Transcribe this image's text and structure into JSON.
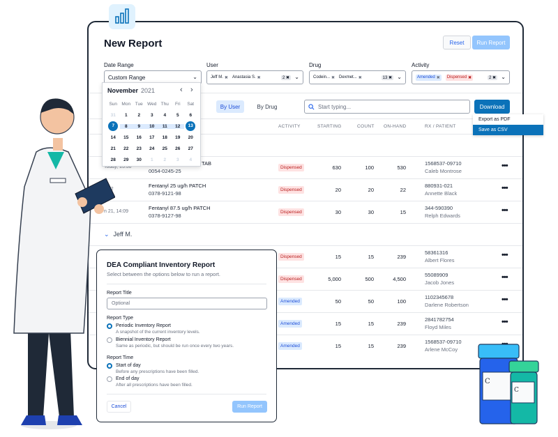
{
  "report": {
    "title": "New Report",
    "reset_label": "Reset",
    "run_label": "Run Report"
  },
  "filters": {
    "date_range": {
      "label": "Date Range",
      "value": "Custom Range"
    },
    "user": {
      "label": "User",
      "chips": [
        "Jeff M.",
        "Anastasia S."
      ],
      "count": "2"
    },
    "drug": {
      "label": "Drug",
      "chips": [
        "Codein...",
        "Dexmet..."
      ],
      "count": "13"
    },
    "activity": {
      "label": "Activity",
      "chips": [
        "Amended",
        "Dispensed"
      ],
      "count": "2"
    }
  },
  "calendar": {
    "month": "November",
    "year": "2021",
    "weekdays": [
      "Sun",
      "Mon",
      "Tue",
      "Wed",
      "Thu",
      "Fri",
      "Sat"
    ],
    "days": [
      [
        "31",
        "1",
        "2",
        "3",
        "4",
        "5",
        "6"
      ],
      [
        "7",
        "8",
        "9",
        "10",
        "11",
        "12",
        "13"
      ],
      [
        "14",
        "15",
        "16",
        "17",
        "18",
        "19",
        "20"
      ],
      [
        "21",
        "22",
        "23",
        "24",
        "25",
        "26",
        "27"
      ],
      [
        "28",
        "29",
        "30",
        "1",
        "2",
        "3",
        "4"
      ]
    ],
    "selected_start": "7",
    "selected_end": "13"
  },
  "toolbar": {
    "tab_by_user": "By User",
    "tab_by_drug": "By Drug",
    "search_placeholder": "Start typing...",
    "download_label": "Download"
  },
  "export_menu": [
    "Export as PDF",
    "Save as CSV"
  ],
  "columns": [
    "ACTIVITY",
    "STARTING",
    "COUNT",
    "ON-HAND",
    "RX / PATIENT"
  ],
  "rows_top": [
    {
      "date": "Today, 13:30",
      "drug": "TAB",
      "ndc": "0054-0245-25",
      "activity": "Dispensed",
      "starting": "630",
      "count": "100",
      "onhand": "530",
      "rx": "1568537-09710",
      "patient": "Caleb Montrose"
    },
    {
      "date": "4:12",
      "drug": "Fentanyl 25 ug/h PATCH",
      "ndc": "0378-9121-98",
      "activity": "Dispensed",
      "starting": "20",
      "count": "20",
      "onhand": "22",
      "rx": "880931-021",
      "patient": "Annette Black"
    },
    {
      "date": "n 21, 14:09",
      "drug": "Fentanyl 87.5 ug/h PATCH",
      "ndc": "0378-9127-98",
      "activity": "Dispensed",
      "starting": "30",
      "count": "30",
      "onhand": "15",
      "rx": "344-590390",
      "patient": "Relph Edwards"
    }
  ],
  "group_jeff": "Jeff M.",
  "rows_jeff": [
    {
      "activity": "Dispensed",
      "starting": "15",
      "count": "15",
      "onhand": "239",
      "rx": "58361316",
      "patient": "Albert Flores"
    },
    {
      "activity": "Dispensed",
      "starting": "5,000",
      "count": "500",
      "onhand": "4,500",
      "rx": "55089909",
      "patient": "Jacob Jones"
    },
    {
      "activity": "Amended",
      "starting": "50",
      "count": "50",
      "onhand": "100",
      "rx": "1102345678",
      "patient": "Darlene Robertson"
    },
    {
      "activity": "Amended",
      "starting": "15",
      "count": "15",
      "onhand": "239",
      "rx": "2841782754",
      "patient": "Floyd Miles"
    },
    {
      "activity": "Amended",
      "starting": "15",
      "count": "15",
      "onhand": "239",
      "rx": "1568537-09710",
      "patient": "Arlene McCoy"
    }
  ],
  "modal": {
    "title": "DEA Compliant Inventory Report",
    "subtitle": "Select between the options below to run a report.",
    "report_title_label": "Report Title",
    "report_title_placeholder": "Optional",
    "report_type_label": "Report Type",
    "periodic_label": "Periodic Inventory Report",
    "periodic_desc": "A snapshot of the current inventory levels.",
    "biennial_label": "Biennial Inventory Report",
    "biennial_desc": "Same as periodic, but should be run once every two years.",
    "report_time_label": "Report Time",
    "start_label": "Start of day",
    "start_desc": "Before any prescriptions have been filled.",
    "end_label": "End of day",
    "end_desc": "After all prescriptions have been filled.",
    "cancel_label": "Cancel",
    "run_label": "Run Report"
  },
  "colors": {
    "primary": "#0b72b9",
    "dispensed": "#b91c1c",
    "amended": "#1d4ed8"
  }
}
